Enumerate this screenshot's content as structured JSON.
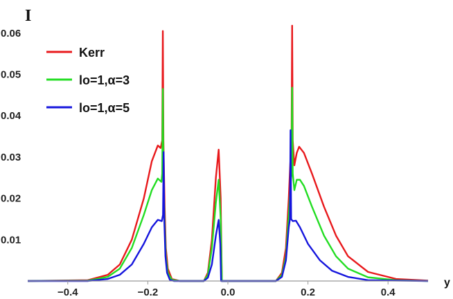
{
  "chart_data": {
    "type": "line",
    "ylabel": "I",
    "xlabel": "y",
    "xlim": [
      -0.5,
      0.5
    ],
    "ylim": [
      0,
      0.065
    ],
    "x_ticks": [
      -0.4,
      -0.2,
      0.0,
      0.2,
      0.4
    ],
    "x_tick_labels": [
      "−0.4",
      "−0.2",
      "0.0",
      "0.2",
      "0.4"
    ],
    "y_ticks": [
      0.01,
      0.02,
      0.03,
      0.04,
      0.05,
      0.06
    ],
    "y_tick_labels": [
      "0.01",
      "0.02",
      "0.03",
      "0.04",
      "0.05",
      "0.06"
    ],
    "grid": false,
    "legend_position": "top-left",
    "series": [
      {
        "name": "Kerr",
        "color": "#e8191c",
        "points": [
          [
            -0.5,
            0
          ],
          [
            -0.35,
            0.0002
          ],
          [
            -0.3,
            0.0015
          ],
          [
            -0.27,
            0.004
          ],
          [
            -0.24,
            0.01
          ],
          [
            -0.21,
            0.02
          ],
          [
            -0.19,
            0.029
          ],
          [
            -0.175,
            0.0328
          ],
          [
            -0.168,
            0.0322
          ],
          [
            -0.164,
            0.034
          ],
          [
            -0.1625,
            0.0605
          ],
          [
            -0.161,
            0.034
          ],
          [
            -0.158,
            0.018
          ],
          [
            -0.155,
            0.008
          ],
          [
            -0.15,
            0.003
          ],
          [
            -0.14,
            0.0005
          ],
          [
            -0.12,
            0
          ],
          [
            -0.06,
            0
          ],
          [
            -0.05,
            0.002
          ],
          [
            -0.04,
            0.01
          ],
          [
            -0.03,
            0.025
          ],
          [
            -0.023,
            0.0318
          ],
          [
            -0.018,
            0.02
          ],
          [
            -0.015,
            0
          ],
          [
            0.12,
            0
          ],
          [
            0.135,
            0.002
          ],
          [
            0.145,
            0.008
          ],
          [
            0.152,
            0.02
          ],
          [
            0.157,
            0.031
          ],
          [
            0.159,
            0.034
          ],
          [
            0.1605,
            0.0618
          ],
          [
            0.162,
            0.034
          ],
          [
            0.166,
            0.028
          ],
          [
            0.172,
            0.031
          ],
          [
            0.178,
            0.0325
          ],
          [
            0.19,
            0.031
          ],
          [
            0.21,
            0.026
          ],
          [
            0.24,
            0.018
          ],
          [
            0.27,
            0.011
          ],
          [
            0.3,
            0.006
          ],
          [
            0.35,
            0.0022
          ],
          [
            0.42,
            0.0005
          ],
          [
            0.5,
            0.0001
          ]
        ]
      },
      {
        "name": "lo=1,α=3",
        "color": "#22dd22",
        "points": [
          [
            -0.5,
            0
          ],
          [
            -0.35,
            0.0001
          ],
          [
            -0.3,
            0.001
          ],
          [
            -0.27,
            0.003
          ],
          [
            -0.24,
            0.008
          ],
          [
            -0.21,
            0.016
          ],
          [
            -0.19,
            0.022
          ],
          [
            -0.175,
            0.0248
          ],
          [
            -0.166,
            0.024
          ],
          [
            -0.164,
            0.026
          ],
          [
            -0.1625,
            0.0465
          ],
          [
            -0.161,
            0.026
          ],
          [
            -0.158,
            0.014
          ],
          [
            -0.155,
            0.006
          ],
          [
            -0.15,
            0.002
          ],
          [
            -0.14,
            0.0003
          ],
          [
            -0.12,
            0
          ],
          [
            -0.06,
            0
          ],
          [
            -0.05,
            0.0015
          ],
          [
            -0.04,
            0.008
          ],
          [
            -0.03,
            0.019
          ],
          [
            -0.023,
            0.0245
          ],
          [
            -0.018,
            0.015
          ],
          [
            -0.015,
            0
          ],
          [
            0.12,
            0
          ],
          [
            0.135,
            0.0015
          ],
          [
            0.145,
            0.006
          ],
          [
            0.152,
            0.016
          ],
          [
            0.157,
            0.024
          ],
          [
            0.159,
            0.026
          ],
          [
            0.1605,
            0.0468
          ],
          [
            0.162,
            0.026
          ],
          [
            0.166,
            0.022
          ],
          [
            0.172,
            0.0245
          ],
          [
            0.18,
            0.0245
          ],
          [
            0.19,
            0.023
          ],
          [
            0.21,
            0.018
          ],
          [
            0.24,
            0.011
          ],
          [
            0.27,
            0.006
          ],
          [
            0.3,
            0.003
          ],
          [
            0.35,
            0.0009
          ],
          [
            0.42,
            0.0002
          ],
          [
            0.5,
            0
          ]
        ]
      },
      {
        "name": "lo=1,α=5",
        "color": "#1515dd",
        "points": [
          [
            -0.5,
            0
          ],
          [
            -0.35,
            0
          ],
          [
            -0.3,
            0.0005
          ],
          [
            -0.27,
            0.0015
          ],
          [
            -0.24,
            0.004
          ],
          [
            -0.21,
            0.009
          ],
          [
            -0.19,
            0.013
          ],
          [
            -0.175,
            0.0148
          ],
          [
            -0.165,
            0.0145
          ],
          [
            -0.162,
            0.016
          ],
          [
            -0.1605,
            0.0312
          ],
          [
            -0.159,
            0.015
          ],
          [
            -0.156,
            0.006
          ],
          [
            -0.152,
            0.002
          ],
          [
            -0.145,
            0.0003
          ],
          [
            -0.135,
            0
          ],
          [
            -0.06,
            0
          ],
          [
            -0.05,
            0.0008
          ],
          [
            -0.04,
            0.004
          ],
          [
            -0.03,
            0.011
          ],
          [
            -0.023,
            0.0148
          ],
          [
            -0.019,
            0.009
          ],
          [
            -0.017,
            0
          ],
          [
            0.12,
            0
          ],
          [
            0.135,
            0.001
          ],
          [
            0.145,
            0.005
          ],
          [
            0.152,
            0.013
          ],
          [
            0.155,
            0.015
          ],
          [
            0.1565,
            0.0365
          ],
          [
            0.158,
            0.015
          ],
          [
            0.162,
            0.0145
          ],
          [
            0.17,
            0.0146
          ],
          [
            0.18,
            0.013
          ],
          [
            0.2,
            0.009
          ],
          [
            0.23,
            0.005
          ],
          [
            0.26,
            0.0025
          ],
          [
            0.3,
            0.001
          ],
          [
            0.35,
            0.0002
          ],
          [
            0.5,
            0
          ]
        ]
      }
    ]
  }
}
